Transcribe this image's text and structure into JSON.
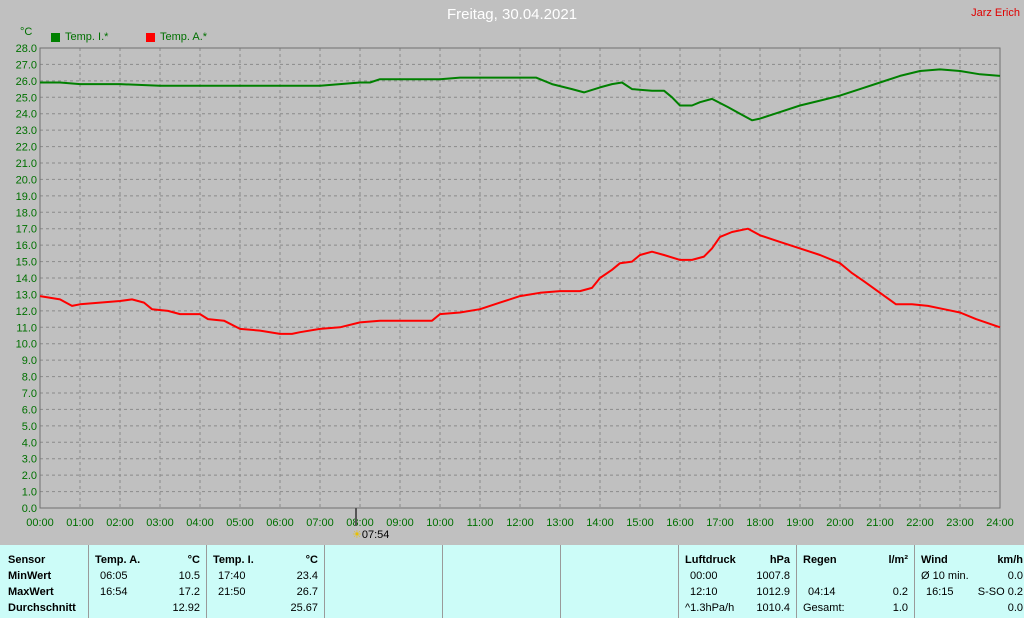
{
  "header": {
    "title": "Freitag, 30.04.2021",
    "author": "Jarz Erich",
    "unit": "°C",
    "sunrise_time": "07:54"
  },
  "colors": {
    "background": "#c0c0c0",
    "grid": "#8a8a8a",
    "axis_text": "#007000",
    "indoor": "#008000",
    "outdoor": "#ff0000",
    "table_bg": "#ccfcf8"
  },
  "chart_data": {
    "type": "line",
    "title": "Freitag, 30.04.2021",
    "xlabel": "",
    "ylabel": "°C",
    "xlim": [
      0,
      24
    ],
    "ylim": [
      0,
      28
    ],
    "grid": true,
    "legend_position": "top-left",
    "x_tick_labels": [
      "00:00",
      "01:00",
      "02:00",
      "03:00",
      "04:00",
      "05:00",
      "06:00",
      "07:00",
      "08:00",
      "09:00",
      "10:00",
      "11:00",
      "12:00",
      "13:00",
      "14:00",
      "15:00",
      "16:00",
      "17:00",
      "18:00",
      "19:00",
      "20:00",
      "21:00",
      "22:00",
      "23:00",
      "24:00"
    ],
    "y_tick_labels": [
      "0.0",
      "1.0",
      "2.0",
      "3.0",
      "4.0",
      "5.0",
      "6.0",
      "7.0",
      "8.0",
      "9.0",
      "10.0",
      "11.0",
      "12.0",
      "13.0",
      "14.0",
      "15.0",
      "16.0",
      "17.0",
      "18.0",
      "19.0",
      "20.0",
      "21.0",
      "22.0",
      "23.0",
      "24.0",
      "25.0",
      "26.0",
      "27.0",
      "28.0"
    ],
    "series": [
      {
        "name": "Temp. I.*",
        "color": "#008000",
        "points": [
          [
            0,
            25.9
          ],
          [
            0.5,
            25.9
          ],
          [
            1,
            25.8
          ],
          [
            2,
            25.8
          ],
          [
            3,
            25.7
          ],
          [
            4,
            25.7
          ],
          [
            4.5,
            25.7
          ],
          [
            5,
            25.7
          ],
          [
            6,
            25.7
          ],
          [
            7,
            25.7
          ],
          [
            7.5,
            25.8
          ],
          [
            8,
            25.9
          ],
          [
            8.25,
            25.9
          ],
          [
            8.5,
            26.1
          ],
          [
            9,
            26.1
          ],
          [
            10,
            26.1
          ],
          [
            10.5,
            26.2
          ],
          [
            11,
            26.2
          ],
          [
            12,
            26.2
          ],
          [
            12.4,
            26.2
          ],
          [
            12.8,
            25.8
          ],
          [
            13.3,
            25.5
          ],
          [
            13.6,
            25.3
          ],
          [
            14,
            25.6
          ],
          [
            14.3,
            25.8
          ],
          [
            14.55,
            25.9
          ],
          [
            14.8,
            25.5
          ],
          [
            15.3,
            25.4
          ],
          [
            15.6,
            25.4
          ],
          [
            15.8,
            25.0
          ],
          [
            16.0,
            24.5
          ],
          [
            16.3,
            24.5
          ],
          [
            16.5,
            24.7
          ],
          [
            16.8,
            24.9
          ],
          [
            17.2,
            24.4
          ],
          [
            17.5,
            24.0
          ],
          [
            17.8,
            23.6
          ],
          [
            18,
            23.7
          ],
          [
            18.5,
            24.1
          ],
          [
            19,
            24.5
          ],
          [
            19.5,
            24.8
          ],
          [
            20,
            25.1
          ],
          [
            20.5,
            25.5
          ],
          [
            21,
            25.9
          ],
          [
            21.5,
            26.3
          ],
          [
            22,
            26.6
          ],
          [
            22.5,
            26.7
          ],
          [
            23,
            26.6
          ],
          [
            23.5,
            26.4
          ],
          [
            24,
            26.3
          ]
        ]
      },
      {
        "name": "Temp. A.*",
        "color": "#ff0000",
        "points": [
          [
            0,
            12.9
          ],
          [
            0.5,
            12.7
          ],
          [
            0.8,
            12.3
          ],
          [
            1,
            12.4
          ],
          [
            1.5,
            12.5
          ],
          [
            2,
            12.6
          ],
          [
            2.3,
            12.7
          ],
          [
            2.6,
            12.5
          ],
          [
            2.8,
            12.1
          ],
          [
            3.2,
            12.0
          ],
          [
            3.5,
            11.8
          ],
          [
            4,
            11.8
          ],
          [
            4.2,
            11.5
          ],
          [
            4.6,
            11.4
          ],
          [
            5,
            10.9
          ],
          [
            5.5,
            10.8
          ],
          [
            6,
            10.6
          ],
          [
            6.3,
            10.6
          ],
          [
            6.5,
            10.7
          ],
          [
            7,
            10.9
          ],
          [
            7.5,
            11.0
          ],
          [
            8,
            11.3
          ],
          [
            8.5,
            11.4
          ],
          [
            9,
            11.4
          ],
          [
            9.5,
            11.4
          ],
          [
            9.8,
            11.4
          ],
          [
            10,
            11.8
          ],
          [
            10.5,
            11.9
          ],
          [
            11,
            12.1
          ],
          [
            11.5,
            12.5
          ],
          [
            12,
            12.9
          ],
          [
            12.5,
            13.1
          ],
          [
            13,
            13.2
          ],
          [
            13.5,
            13.2
          ],
          [
            13.8,
            13.4
          ],
          [
            14,
            14.0
          ],
          [
            14.3,
            14.5
          ],
          [
            14.5,
            14.9
          ],
          [
            14.8,
            15.0
          ],
          [
            15,
            15.4
          ],
          [
            15.3,
            15.6
          ],
          [
            15.6,
            15.4
          ],
          [
            16,
            15.1
          ],
          [
            16.3,
            15.1
          ],
          [
            16.6,
            15.3
          ],
          [
            16.8,
            15.8
          ],
          [
            17,
            16.5
          ],
          [
            17.3,
            16.8
          ],
          [
            17.7,
            17.0
          ],
          [
            18,
            16.6
          ],
          [
            18.5,
            16.2
          ],
          [
            19,
            15.8
          ],
          [
            19.5,
            15.4
          ],
          [
            20,
            14.9
          ],
          [
            20.3,
            14.3
          ],
          [
            20.6,
            13.8
          ],
          [
            21,
            13.1
          ],
          [
            21.4,
            12.4
          ],
          [
            21.8,
            12.4
          ],
          [
            22.2,
            12.3
          ],
          [
            22.6,
            12.1
          ],
          [
            23,
            11.9
          ],
          [
            23.4,
            11.5
          ],
          [
            24,
            11.0
          ]
        ]
      }
    ]
  },
  "stats_table": {
    "sensor": {
      "title": "Sensor",
      "rows": [
        "MinWert",
        "MaxWert",
        "Durchschnitt"
      ]
    },
    "temp_a": {
      "title": "Temp. A.",
      "unit": "°C",
      "min_time": "06:05",
      "min": "10.5",
      "max_time": "16:54",
      "max": "17.2",
      "avg": "12.92"
    },
    "temp_i": {
      "title": "Temp. I.",
      "unit": "°C",
      "min_time": "17:40",
      "min": "23.4",
      "max_time": "21:50",
      "max": "26.7",
      "avg": "25.67"
    },
    "pressure": {
      "title": "Luftdruck",
      "unit": "hPa",
      "min_time": "00:00",
      "min": "1007.8",
      "max_time": "12:10",
      "max": "1012.9",
      "trend_label": "^1.3hPa/h",
      "avg": "1010.4"
    },
    "rain": {
      "title": "Regen",
      "unit": "l/m²",
      "max_time": "04:14",
      "max": "0.2",
      "total_label": "Gesamt:",
      "total": "1.0"
    },
    "wind": {
      "title": "Wind",
      "unit": "km/h",
      "avg_label": "Ø 10 min.",
      "avg": "0.0",
      "max_time": "16:15",
      "max": "S-SO 0.2",
      "last": "0.0"
    }
  }
}
